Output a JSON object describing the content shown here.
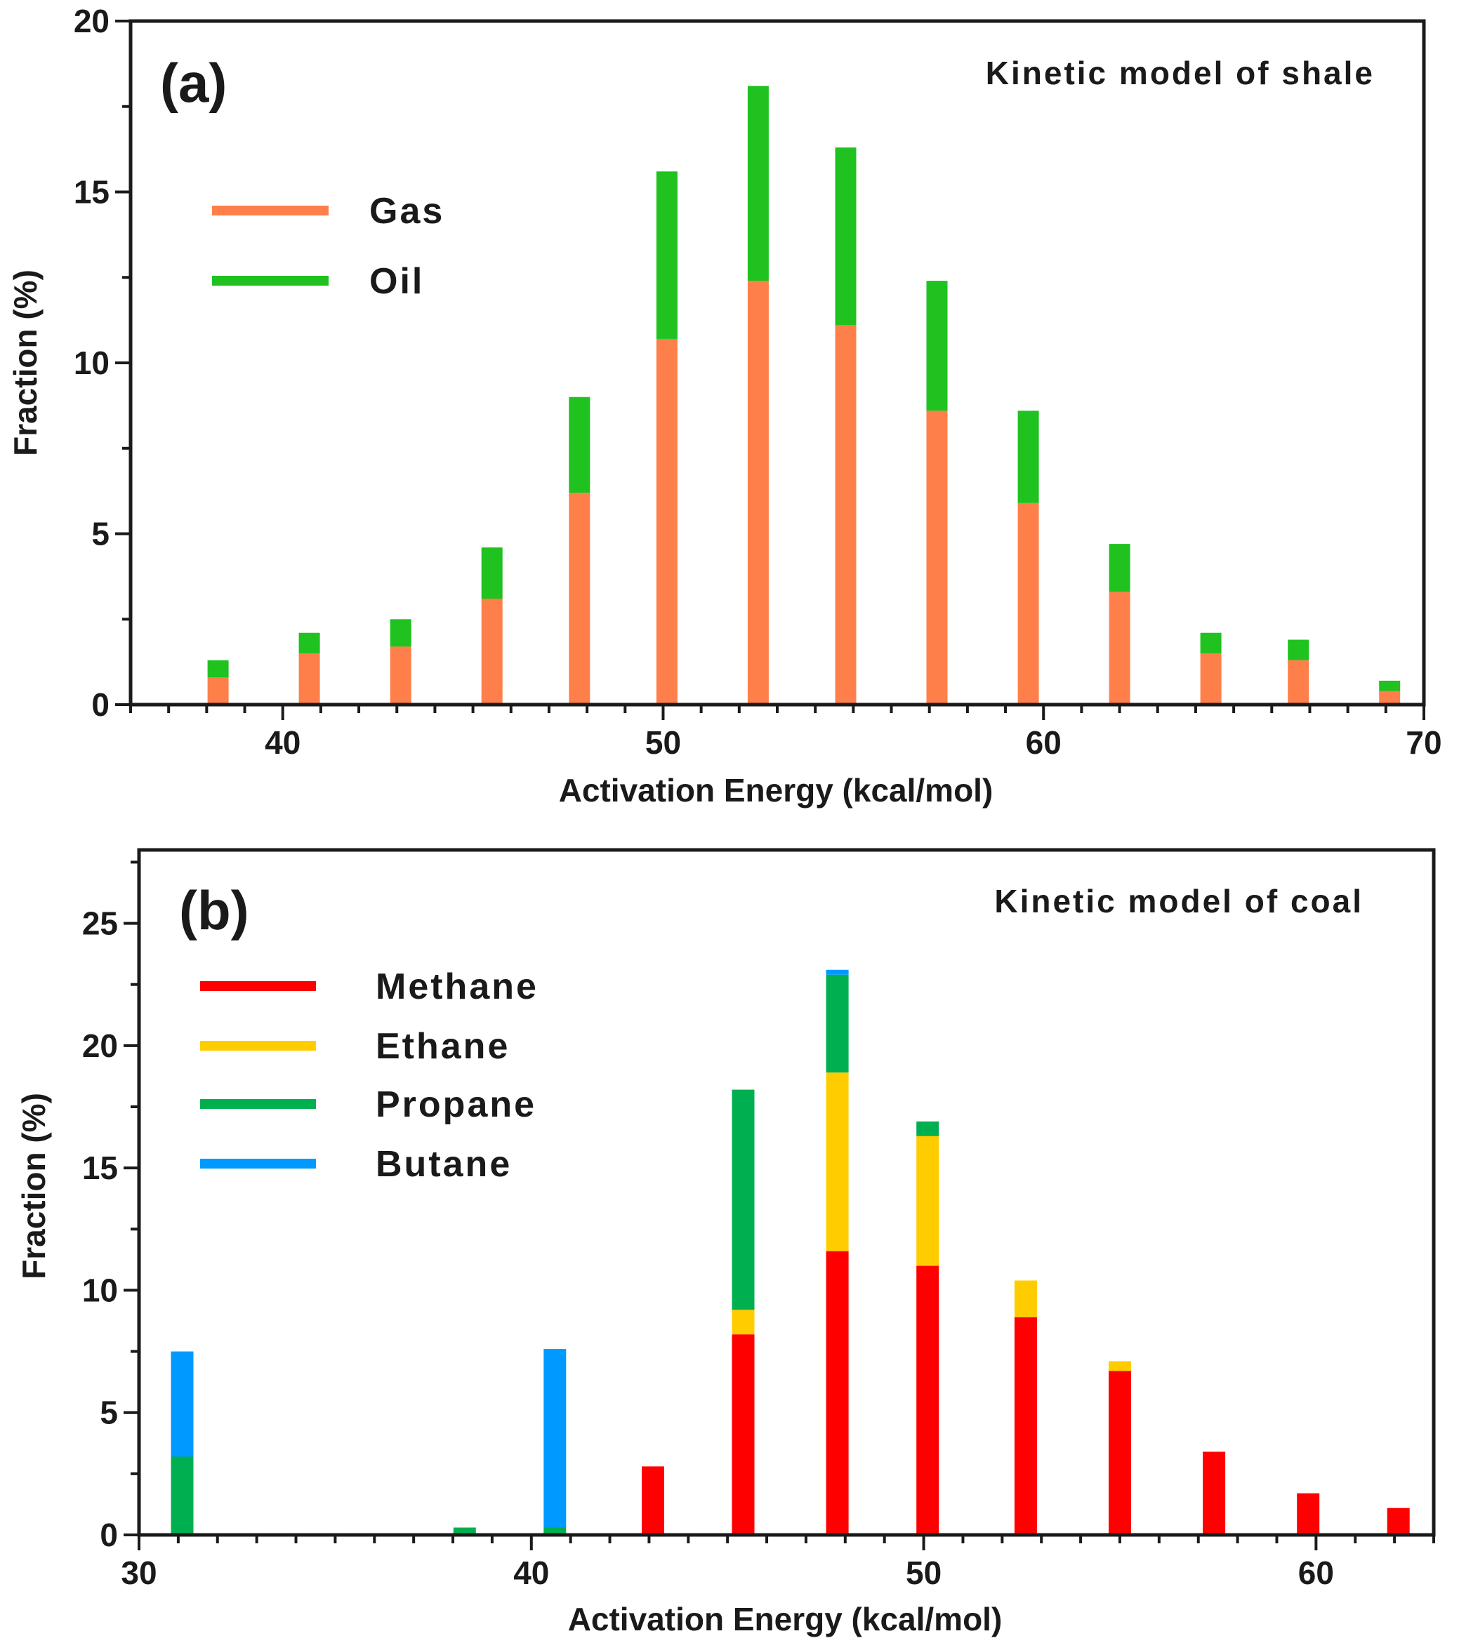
{
  "chart_data": [
    {
      "type": "bar",
      "stacked": true,
      "panel_label": "(a)",
      "title": "Kinetic model of shale",
      "xlabel": "Activation Energy (kcal/mol)",
      "ylabel": "Fraction (%)",
      "xlim": [
        36,
        70
      ],
      "ylim": [
        0,
        20
      ],
      "xticks": [
        40,
        50,
        60,
        70
      ],
      "yticks": [
        0,
        5,
        10,
        15,
        20
      ],
      "x": [
        38.3,
        40.7,
        43.1,
        45.5,
        47.8,
        50.1,
        52.5,
        54.8,
        57.2,
        59.6,
        62.0,
        64.4,
        66.7,
        69.1
      ],
      "series": [
        {
          "name": "Gas",
          "color": "#ff7f4a",
          "values": [
            0.8,
            1.5,
            1.7,
            3.1,
            6.2,
            10.7,
            12.4,
            11.1,
            8.6,
            5.9,
            3.3,
            1.5,
            1.3,
            0.4
          ]
        },
        {
          "name": "Oil",
          "color": "#1fc21f",
          "values": [
            0.5,
            0.6,
            0.8,
            1.5,
            2.8,
            4.9,
            5.7,
            5.2,
            3.8,
            2.7,
            1.4,
            0.6,
            0.6,
            0.3
          ]
        }
      ],
      "legend_location": "upper-left"
    },
    {
      "type": "bar",
      "stacked": true,
      "panel_label": "(b)",
      "title": "Kinetic model of coal",
      "xlabel": "Activation Energy (kcal/mol)",
      "ylabel": "Fraction (%)",
      "xlim": [
        30,
        63
      ],
      "ylim": [
        0,
        28
      ],
      "xticks": [
        30,
        40,
        50,
        60
      ],
      "yticks": [
        0,
        5,
        10,
        15,
        20,
        25
      ],
      "x": [
        31.1,
        38.3,
        40.6,
        43.1,
        45.4,
        47.8,
        50.1,
        52.6,
        55.0,
        57.4,
        59.8,
        62.1
      ],
      "series": [
        {
          "name": "Methane",
          "color": "#ff0000",
          "values": [
            0,
            0,
            0,
            2.8,
            8.2,
            11.6,
            11.0,
            8.9,
            6.7,
            3.4,
            1.7,
            1.1
          ]
        },
        {
          "name": "Ethane",
          "color": "#ffcc00",
          "values": [
            0,
            0,
            0,
            0,
            1.0,
            7.3,
            5.3,
            1.5,
            0.4,
            0,
            0,
            0
          ]
        },
        {
          "name": "Propane",
          "color": "#00b050",
          "values": [
            3.2,
            0.3,
            0.3,
            0,
            9.0,
            4.0,
            0.6,
            0,
            0,
            0,
            0,
            0
          ]
        },
        {
          "name": "Butane",
          "color": "#0099ff",
          "values": [
            4.3,
            0,
            7.3,
            0,
            0,
            0.2,
            0,
            0,
            0,
            0,
            0,
            0
          ]
        }
      ],
      "legend_location": "upper-left"
    }
  ]
}
